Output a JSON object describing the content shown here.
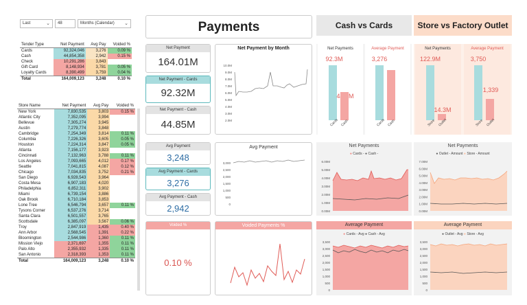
{
  "filters": {
    "period": "Last",
    "count": "48",
    "unit": "Months (Calendar)"
  },
  "tender": {
    "headers": [
      "Tender Type",
      "Net Payment",
      "Avg Pay",
      "Voided %"
    ],
    "rows": [
      [
        "Cards",
        "92,324,046",
        "3,276",
        "0.09 %"
      ],
      [
        "Cash",
        "44,854,358",
        "2,942",
        "0.15 %"
      ],
      [
        "Check",
        "10,291,286",
        "3,843",
        ""
      ],
      [
        "Gift Card",
        "8,148,934",
        "3,781",
        "0.05 %"
      ],
      [
        "Loyalty Cards",
        "8,390,499",
        "3,759",
        "0.04 %"
      ]
    ],
    "total": [
      "Total",
      "164,009,123",
      "3,248",
      "0.10 %"
    ]
  },
  "stores": {
    "headers": [
      "Store Name",
      "Net Payment",
      "Avg Pay",
      "Voided %"
    ],
    "rows": [
      [
        "New York",
        "7,830,535",
        "3,803",
        "0.15 %"
      ],
      [
        "Atlantic City",
        "7,352,095",
        "3,994",
        ""
      ],
      [
        "Bellevue",
        "7,305,274",
        "3,945",
        ""
      ],
      [
        "Austin",
        "7,279,774",
        "3,848",
        ""
      ],
      [
        "Cambridge",
        "7,254,349",
        "3,814",
        "0.11 %"
      ],
      [
        "Columbia",
        "7,226,326",
        "3,605",
        "0.05 %"
      ],
      [
        "Houston",
        "7,224,314",
        "3,847",
        "0.05 %"
      ],
      [
        "Atlanta",
        "7,156,177",
        "3,923",
        ""
      ],
      [
        "Cincinnati",
        "7,132,963",
        "3,788",
        "0.11 %"
      ],
      [
        "Los Angeles",
        "7,093,665",
        "4,012",
        "0.17 %"
      ],
      [
        "Seattle",
        "7,041,815",
        "4,087",
        "0.12 %"
      ],
      [
        "Chicago",
        "7,034,835",
        "3,752",
        "0.21 %"
      ],
      [
        "San Diego",
        "6,928,543",
        "3,964",
        ""
      ],
      [
        "Costa Mesa",
        "6,907,183",
        "4,020",
        ""
      ],
      [
        "Philadelphia",
        "6,852,311",
        "3,902",
        ""
      ],
      [
        "Miami",
        "6,739,154",
        "3,886",
        ""
      ],
      [
        "Oak Brook",
        "6,710,184",
        "3,853",
        ""
      ],
      [
        "Lone Tree",
        "6,546,794",
        "3,657",
        "0.11 %"
      ],
      [
        "Tysons Corner",
        "6,537,276",
        "3,714",
        ""
      ],
      [
        "Santa Clara",
        "6,501,557",
        "3,765",
        ""
      ],
      [
        "Scottsdale",
        "6,385,097",
        "3,567",
        "0.06 %"
      ],
      [
        "Troy",
        "2,847,919",
        "1,435",
        "0.40 %"
      ],
      [
        "Ann Arbor",
        "2,568,545",
        "1,391",
        "0.22 %"
      ],
      [
        "Bloomington",
        "2,544,986",
        "1,360",
        "0.11 %"
      ],
      [
        "Mission Viejo",
        "2,371,697",
        "1,355",
        "0.11 %"
      ],
      [
        "Palo Alto",
        "2,355,932",
        "1,335",
        "0.11 %"
      ],
      [
        "San Antonio",
        "2,318,393",
        "1,353",
        "0.11 %"
      ]
    ],
    "total": [
      "Total",
      "164,009,123",
      "3,248",
      "0.10 %"
    ]
  },
  "title": "Payments",
  "headers": {
    "cash_cards": "Cash vs Cards",
    "store_outlet": "Store vs Factory Outlet"
  },
  "kpi": {
    "net_title": "Net Payment",
    "net_value": "164.01M",
    "net_cards_title": "Net Payment - Cards",
    "net_cards_value": "92.32M",
    "net_cash_title": "Net Payment - Cash",
    "net_cash_value": "44.85M",
    "avg_title": "Avg Payment",
    "avg_value": "3,248",
    "avg_cards_title": "Avg Payment - Cards",
    "avg_cards_value": "3,276",
    "avg_cash_title": "Avg Payment - Cash",
    "avg_cash_value": "2,942",
    "void_title": "Voided %",
    "void_value": "0.10 %"
  },
  "charts": {
    "net_by_month": "Net Payment by Month",
    "avg_payment": "Avg Payment",
    "voided": "Voided Payments %",
    "net_payments": "Net Payments",
    "average_payment": "Average Payment",
    "net_legend_cc": [
      "Cards -",
      "Cash -"
    ],
    "net_legend_so": [
      "Outlet - Amount",
      "Store - Amount"
    ],
    "avg_legend_cc": [
      "Cards - Avg",
      "Cash - Avg"
    ],
    "avg_legend_so": [
      "Outlet - Avg",
      "Store - Avg"
    ]
  },
  "chart_data": [
    {
      "type": "line",
      "title": "Net Payment by Month",
      "yticks": [
        "10.0M",
        "9.0M",
        "8.0M",
        "7.0M",
        "6.0M",
        "5.0M",
        "4.0M",
        "3.0M",
        "2.0M"
      ]
    },
    {
      "type": "line",
      "title": "Avg Payment",
      "yticks": [
        "3,000",
        "2,500",
        "2,000",
        "1,500",
        "1,000",
        "500",
        "0"
      ]
    },
    {
      "type": "line",
      "title": "Voided Payments %"
    },
    {
      "type": "bar",
      "title": "Net Payments",
      "categories": [
        "Cards",
        "Cash"
      ],
      "values": [
        92.3,
        44.9
      ],
      "labels": [
        "92.3M",
        "44.9M"
      ]
    },
    {
      "type": "bar",
      "title": "Average Payment",
      "categories": [
        "Cards",
        "Cash"
      ],
      "values": [
        3276,
        2942
      ],
      "labels": [
        "3,276",
        "2,942"
      ]
    },
    {
      "type": "bar",
      "title": "Net Payments",
      "categories": [
        "Store",
        "Outlet"
      ],
      "values": [
        122.9,
        14.3
      ],
      "labels": [
        "122.9M",
        "14.3M"
      ]
    },
    {
      "type": "bar",
      "title": "Average Payment",
      "categories": [
        "Store",
        "Outlet"
      ],
      "values": [
        3750,
        1339
      ],
      "labels": [
        "3,750",
        "1,339"
      ]
    },
    {
      "type": "area",
      "title": "Net Payments",
      "series": [
        {
          "name": "Cards -"
        },
        {
          "name": "Cash -"
        }
      ],
      "yticks": [
        "6.00M",
        "5.00M",
        "4.00M",
        "3.00M",
        "2.00M",
        "1.00M",
        "0.00M"
      ]
    },
    {
      "type": "area",
      "title": "Net Payments",
      "series": [
        {
          "name": "Outlet - Amount"
        },
        {
          "name": "Store - Amount"
        }
      ],
      "yticks": [
        "7.00M",
        "6.00M",
        "5.00M",
        "4.00M",
        "3.00M",
        "2.00M",
        "1.00M",
        "0.00M"
      ]
    },
    {
      "type": "area",
      "title": "Average Payment",
      "series": [
        {
          "name": "Cards - Avg"
        },
        {
          "name": "Cash - Avg"
        }
      ],
      "yticks": [
        "3,500",
        "3,000",
        "2,500",
        "2,000",
        "1,500",
        "1,000",
        "500",
        "0"
      ]
    },
    {
      "type": "area",
      "title": "Average Payment",
      "series": [
        {
          "name": "Outlet - Avg"
        },
        {
          "name": "Store - Avg"
        }
      ],
      "yticks": [
        "3,500",
        "3,000",
        "2,500",
        "2,000",
        "1,500",
        "1,000",
        "500",
        "0"
      ]
    }
  ],
  "colors": {
    "teal": "#a8dcde",
    "salmon": "#f4a6a3",
    "peach": "#fbd4bf",
    "green": "#8fd49b",
    "red": "#f08a84",
    "value_blue": "#2e6da4",
    "value_red": "#d9534f"
  }
}
